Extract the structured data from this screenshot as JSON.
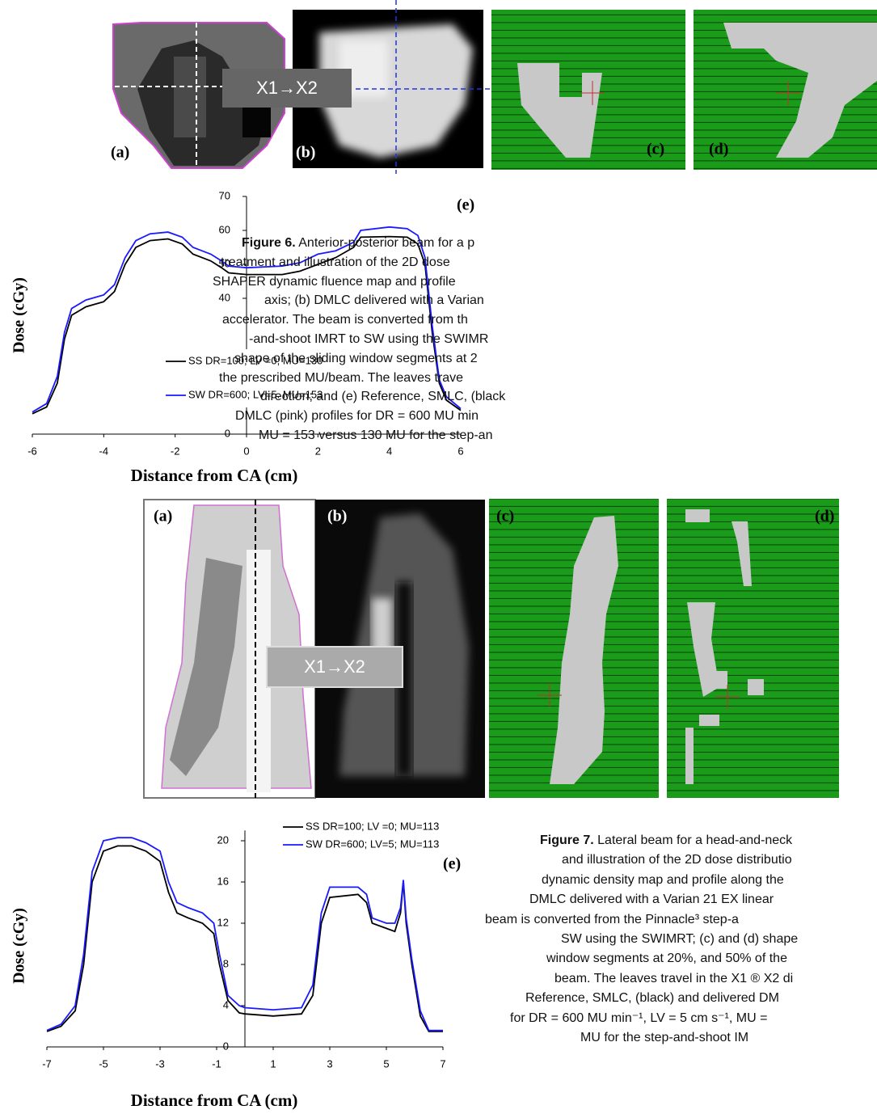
{
  "chart_data": [
    {
      "type": "line",
      "y_label": "Dose (cGy)",
      "x_label": "Distance from CA (cm)",
      "panel": "(e)",
      "x": [
        -6,
        -5.6,
        -5.3,
        -5.1,
        -4.9,
        -4.5,
        -4,
        -3.7,
        -3.4,
        -3.1,
        -2.7,
        -2.2,
        -1.8,
        -1.5,
        -1,
        -0.7,
        -0.5,
        0,
        1,
        1.5,
        2,
        2.5,
        3,
        3.2,
        4,
        4.5,
        4.8,
        5,
        5.2,
        5.4,
        5.6,
        6
      ],
      "series": [
        {
          "name": "SS  DR=100; LV =0; MU=130",
          "color": "#000000",
          "values": [
            6,
            8,
            15,
            28,
            35,
            37.5,
            39,
            42,
            50,
            55,
            57,
            57.5,
            56,
            53,
            51,
            49,
            47.5,
            47,
            47,
            48,
            50,
            52,
            55,
            58,
            58.2,
            58,
            56,
            50,
            30,
            15,
            10,
            7
          ]
        },
        {
          "name": "SW DR=600; LV=5. MU=153",
          "color": "#1a1aff",
          "values": [
            6.5,
            9,
            17,
            30,
            37,
            39.5,
            41,
            44,
            52,
            57,
            59,
            59.5,
            58,
            55,
            53,
            51,
            49.5,
            49,
            49.5,
            50.5,
            53,
            54,
            56.5,
            60,
            61,
            60.5,
            58.5,
            52,
            32,
            16,
            11,
            7.5
          ]
        }
      ],
      "xlim": [
        -6,
        6
      ],
      "xticks": [
        -6,
        -4,
        -2,
        0,
        2,
        4,
        6
      ],
      "ylim": [
        0,
        70
      ],
      "yticks": [
        0,
        10,
        40,
        50,
        60,
        70
      ]
    },
    {
      "type": "line",
      "y_label": "Dose (cGy)",
      "x_label": "Distance from CA (cm)",
      "panel": "(e)",
      "x": [
        -7,
        -6.5,
        -6,
        -5.7,
        -5.4,
        -5,
        -4.5,
        -4,
        -3.5,
        -3,
        -2.7,
        -2.4,
        -2,
        -1.5,
        -1.1,
        -0.9,
        -0.6,
        -0.2,
        0,
        1,
        2,
        2.4,
        2.7,
        3,
        4,
        4.3,
        4.5,
        5,
        5.3,
        5.5,
        5.6,
        5.7,
        5.9,
        6.2,
        6.5,
        7
      ],
      "series": [
        {
          "name": "SS DR=100; LV =0; MU=113",
          "color": "#000000",
          "values": [
            1.5,
            2,
            3.5,
            8,
            16,
            19,
            19.5,
            19.5,
            19,
            18,
            15,
            13,
            12.5,
            12,
            11,
            8,
            4.5,
            3.3,
            3.2,
            3,
            3.2,
            5,
            12,
            14.5,
            14.8,
            14,
            12,
            11.5,
            11.2,
            13,
            16,
            12,
            8,
            3,
            1.5,
            1.5
          ]
        },
        {
          "name": "SW DR=600; LV=5; MU=113",
          "color": "#1a1aff",
          "values": [
            1.6,
            2.2,
            4,
            9,
            17,
            20,
            20.3,
            20.3,
            19.8,
            19,
            16,
            14,
            13.5,
            13,
            12,
            9,
            5,
            4,
            3.8,
            3.6,
            3.8,
            6,
            13,
            15.5,
            15.5,
            14.8,
            12.5,
            12,
            12,
            13.5,
            16.2,
            12.5,
            8.5,
            3.5,
            1.6,
            1.6
          ]
        }
      ],
      "xlim": [
        -7,
        7
      ],
      "xticks": [
        -7,
        -5,
        -3,
        -1,
        1,
        3,
        5,
        7
      ],
      "ylim": [
        0,
        21
      ],
      "yticks": [
        0,
        4,
        8,
        12,
        16,
        20
      ]
    }
  ],
  "figure6": {
    "panels": [
      "(a)",
      "(b)",
      "(c)",
      "(d)"
    ],
    "arrow_label": "X1→X2",
    "caption": {
      "label": "Figure 6.",
      "lines": [
        "Anterior-posterior beam for a p",
        "treatment and illustration of the 2D dose",
        "SHAPER dynamic fluence map and profile",
        "axis; (b) DMLC delivered with a Varian",
        "accelerator. The beam is converted from th",
        "-and-shoot IMRT to SW using the SWIMR",
        "shape of the sliding window segments at 2",
        "the prescribed MU/beam. The leaves trave",
        "direction; and (e) Reference, SMLC, (black",
        "DMLC (pink) profiles for DR = 600 MU min",
        "MU = 153 versus 130 MU for the step-an"
      ]
    }
  },
  "figure7": {
    "panels": [
      "(a)",
      "(b)",
      "(c)",
      "(d)"
    ],
    "arrow_label": "X1→X2",
    "caption": {
      "label": "Figure 7.",
      "lines": [
        "Lateral beam for a head-and-neck",
        "and illustration of the 2D dose distributio",
        "dynamic density map and profile along the",
        "DMLC delivered with a Varian 21 EX linear",
        "beam is converted from the Pinnacle³ step-a",
        "SW using the SWIMRT; (c) and (d) shape",
        "window segments at 20%, and 50% of the",
        "beam. The leaves travel in the X1 ® X2 di",
        "Reference, SMLC, (black) and delivered DM",
        "for DR = 600 MU min⁻¹, LV = 5 cm s⁻¹, MU =",
        "MU for the step-and-shoot IM"
      ]
    }
  }
}
